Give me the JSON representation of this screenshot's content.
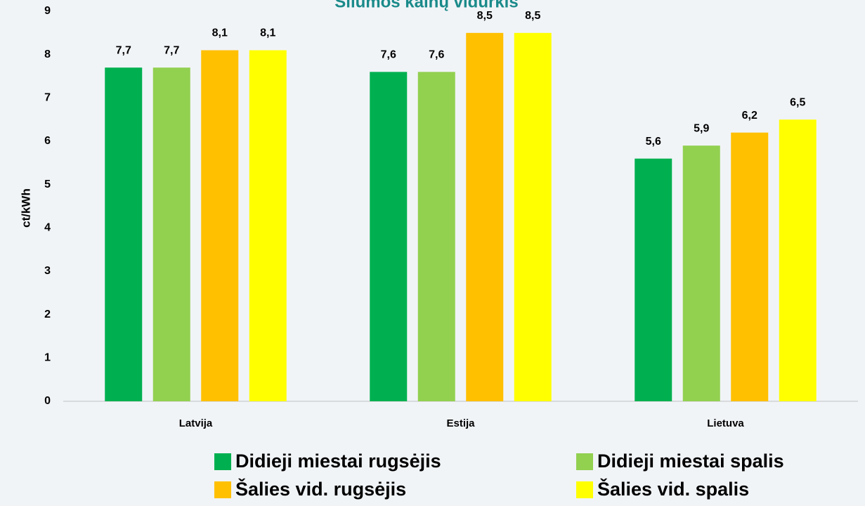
{
  "chart_data": {
    "type": "bar",
    "title": "Šilumos kainų vidurkis",
    "y_label": "ct/kWh",
    "categories": [
      "Latvija",
      "Estija",
      "Lietuva"
    ],
    "series": [
      {
        "name": "Didieji miestai rugsėjis",
        "color": "#00b050",
        "values": [
          7.7,
          7.6,
          5.6
        ],
        "value_labels": [
          "7,7",
          "7,6",
          "5,6"
        ]
      },
      {
        "name": "Didieji miestai spalis",
        "color": "#92d050",
        "values": [
          7.7,
          7.6,
          5.9
        ],
        "value_labels": [
          "7,7",
          "7,6",
          "5,9"
        ]
      },
      {
        "name": "Šalies vid. rugsėjis",
        "color": "#ffc000",
        "values": [
          8.1,
          8.5,
          6.2
        ],
        "value_labels": [
          "8,1",
          "8,5",
          "6,2"
        ]
      },
      {
        "name": "Šalies vid. spalis",
        "color": "#ffff00",
        "values": [
          8.1,
          8.5,
          6.5
        ],
        "value_labels": [
          "8,1",
          "8,5",
          "6,5"
        ]
      }
    ],
    "ylim": [
      0,
      9
    ],
    "yticks": [
      0,
      1,
      2,
      3,
      4,
      5,
      6,
      7,
      8,
      9
    ],
    "grid": false,
    "legend": "bottom"
  }
}
